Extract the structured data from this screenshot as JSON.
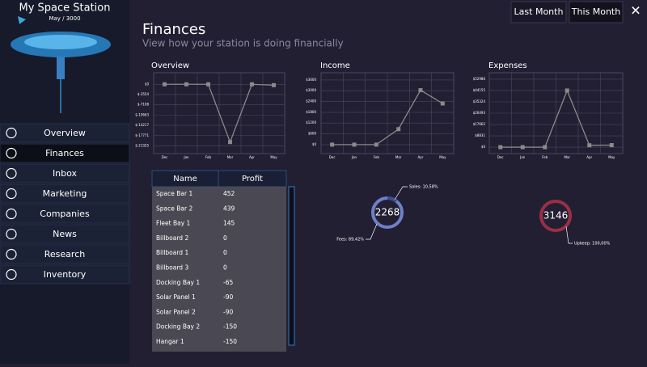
{
  "header": {
    "station_name": "My Space Station",
    "date": "May / 3000",
    "title": "Finances",
    "subtitle": "View how your station is doing financially",
    "buttons": [
      "Last Month",
      "This Month"
    ],
    "close": "✕"
  },
  "menu": [
    "Overview",
    "Finances",
    "Inbox",
    "Marketing",
    "Companies",
    "News",
    "Research",
    "Inventory"
  ],
  "panels": [
    {
      "title": "Overview",
      "categories": [
        "Dec",
        "Jan",
        "Feb",
        "Mar",
        "Apr",
        "May"
      ],
      "values": [
        0,
        0,
        0,
        -20000,
        0,
        -300
      ],
      "ylim": [
        -24000,
        4000
      ],
      "yticks": [
        {
          "value": 0,
          "label": "$0"
        },
        {
          "value": -3554,
          "label": "$-3554"
        },
        {
          "value": -7108,
          "label": "$-7108"
        },
        {
          "value": -10663,
          "label": "$-10663"
        },
        {
          "value": -14217,
          "label": "$-14217"
        },
        {
          "value": -17771,
          "label": "$-17771"
        },
        {
          "value": -21325,
          "label": "$-21325"
        }
      ]
    },
    {
      "title": "Income",
      "categories": [
        "Dec",
        "Jan",
        "Feb",
        "Mar",
        "Apr",
        "May"
      ],
      "values": [
        0,
        0,
        0,
        860,
        3030,
        2290
      ],
      "ylim": [
        -500,
        4000
      ],
      "yticks": [
        {
          "value": 0,
          "label": "$0"
        },
        {
          "value": 600,
          "label": "$600"
        },
        {
          "value": 1200,
          "label": "$1200"
        },
        {
          "value": 1800,
          "label": "$1800"
        },
        {
          "value": 2400,
          "label": "$2400"
        },
        {
          "value": 3000,
          "label": "$3000"
        },
        {
          "value": 3600,
          "label": "$3600"
        }
      ]
    },
    {
      "title": "Expenses",
      "categories": [
        "Dec",
        "Jan",
        "Feb",
        "Mar",
        "Apr",
        "May"
      ],
      "values": [
        0,
        0,
        0,
        44155,
        1500,
        1600
      ],
      "ylim": [
        -5000,
        58000
      ],
      "yticks": [
        {
          "value": 0,
          "label": "$0"
        },
        {
          "value": 8831,
          "label": "$8831"
        },
        {
          "value": 17662,
          "label": "$17662"
        },
        {
          "value": 26493,
          "label": "$26493"
        },
        {
          "value": 35324,
          "label": "$35324"
        },
        {
          "value": 44155,
          "label": "$44155"
        },
        {
          "value": 52986,
          "label": "$52986"
        }
      ]
    }
  ],
  "table": {
    "columns": [
      "Name",
      "Profit"
    ],
    "rows": [
      [
        "Space Bar 1",
        "452"
      ],
      [
        "Space Bar 2",
        "439"
      ],
      [
        "Fleet Bay 1",
        "145"
      ],
      [
        "Billboard 2",
        "0"
      ],
      [
        "Billboard 1",
        "0"
      ],
      [
        "Billboard 3",
        "0"
      ],
      [
        "Docking Bay 1",
        "-65"
      ],
      [
        "Solar Panel 1",
        "-90"
      ],
      [
        "Solar Panel 2",
        "-90"
      ],
      [
        "Docking Bay 2",
        "-150"
      ],
      [
        "Hangar 1",
        "-150"
      ]
    ]
  },
  "donuts": [
    {
      "total": "2268",
      "labels": [
        "Sales: 10,58%",
        "Fees: 89,42%"
      ]
    },
    {
      "total": "3146",
      "labels": [
        "Upkeep: 100,00%"
      ]
    }
  ]
}
